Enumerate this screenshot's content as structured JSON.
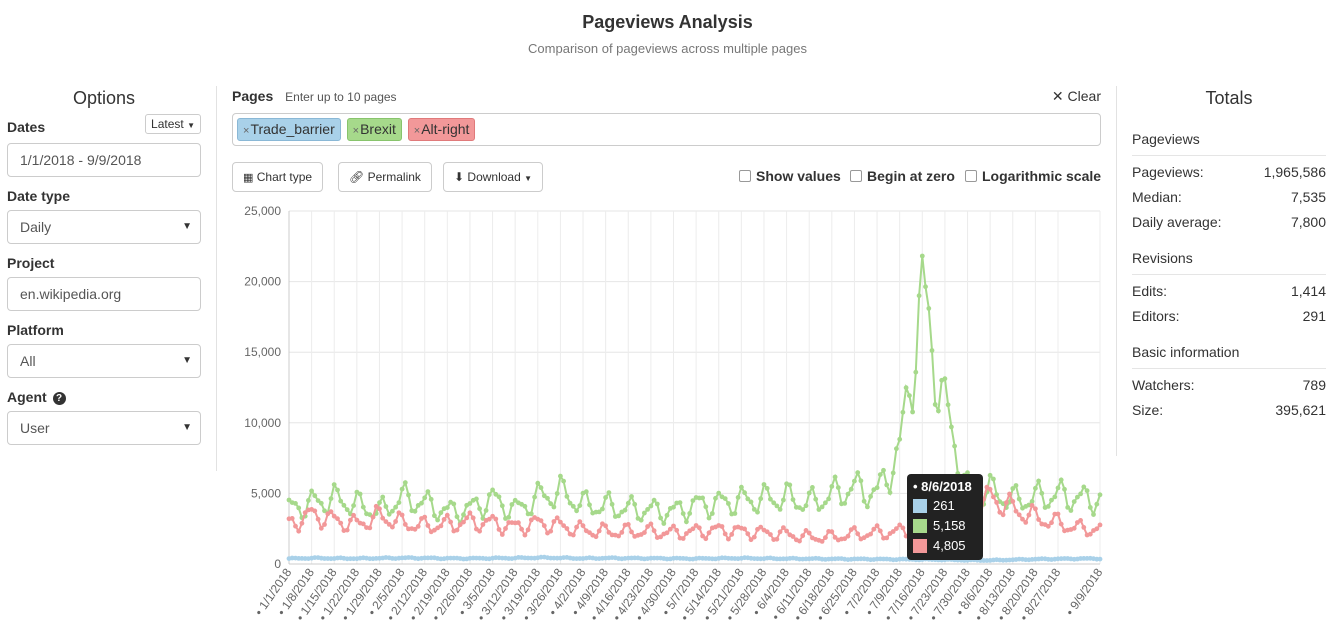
{
  "header": {
    "title": "Pageviews Analysis",
    "subtitle": "Comparison of pageviews across multiple pages"
  },
  "options": {
    "title": "Options",
    "dates_label": "Dates",
    "latest_label": "Latest",
    "dates_value": "1/1/2018 - 9/9/2018",
    "date_type_label": "Date type",
    "date_type_value": "Daily",
    "project_label": "Project",
    "project_value": "en.wikipedia.org",
    "platform_label": "Platform",
    "platform_value": "All",
    "agent_label": "Agent",
    "agent_value": "User"
  },
  "pages": {
    "label": "Pages",
    "hint": "Enter up to 10 pages",
    "clear_label": "Clear",
    "tags": [
      {
        "name": "Trade_barrier",
        "color": "#a9d1e9"
      },
      {
        "name": "Brexit",
        "color": "#a6d98b"
      },
      {
        "name": "Alt-right",
        "color": "#f29899"
      }
    ]
  },
  "toolbar": {
    "chart_type": "Chart type",
    "permalink": "Permalink",
    "download": "Download",
    "show_values": "Show values",
    "begin_at_zero": "Begin at zero",
    "log_scale": "Logarithmic scale"
  },
  "totals": {
    "title": "Totals",
    "pageviews_section": "Pageviews",
    "pageviews_label": "Pageviews:",
    "pageviews_value": "1,965,586",
    "median_label": "Median:",
    "median_value": "7,535",
    "daily_label": "Daily average:",
    "daily_value": "7,800",
    "revisions_section": "Revisions",
    "edits_label": "Edits:",
    "edits_value": "1,414",
    "editors_label": "Editors:",
    "editors_value": "291",
    "basic_section": "Basic information",
    "watchers_label": "Watchers:",
    "watchers_value": "789",
    "size_label": "Size:",
    "size_value": "395,621"
  },
  "tooltip": {
    "date": "8/6/2018",
    "rows": [
      {
        "value": "261",
        "color": "#a9d1e9"
      },
      {
        "value": "5,158",
        "color": "#a6d98b"
      },
      {
        "value": "4,805",
        "color": "#f29899"
      }
    ]
  },
  "chart_data": {
    "type": "line",
    "title": "",
    "xlabel": "",
    "ylabel": "",
    "ylim": [
      0,
      25000
    ],
    "y_ticks": [
      "0",
      "5,000",
      "10,000",
      "15,000",
      "20,000",
      "25,000"
    ],
    "x_ticks": [
      "1/1/2018",
      "1/8/2018",
      "1/15/2018",
      "1/22/2018",
      "1/29/2018",
      "2/5/2018",
      "2/12/2018",
      "2/19/2018",
      "2/26/2018",
      "3/5/2018",
      "3/12/2018",
      "3/19/2018",
      "3/26/2018",
      "4/2/2018",
      "4/9/2018",
      "4/16/2018",
      "4/23/2018",
      "4/30/2018",
      "5/7/2018",
      "5/14/2018",
      "5/21/2018",
      "5/28/2018",
      "6/4/2018",
      "6/11/2018",
      "6/18/2018",
      "6/25/2018",
      "7/2/2018",
      "7/9/2018",
      "7/16/2018",
      "7/23/2018",
      "7/30/2018",
      "8/6/2018",
      "8/13/2018",
      "8/20/2018",
      "8/27/2018",
      "9/9/2018"
    ],
    "x_start": "2018-01-01",
    "x_end": "2018-09-09",
    "grid": true,
    "series": [
      {
        "name": "Trade_barrier",
        "color": "#a9d1e9",
        "weekly": [
          380,
          420,
          400,
          390,
          410,
          430,
          420,
          400,
          390,
          410,
          420,
          450,
          430,
          400,
          420,
          410,
          400,
          390,
          380,
          400,
          410,
          390,
          380,
          370,
          360,
          350,
          340,
          330,
          320,
          300,
          270,
          261,
          300,
          340,
          360,
          380
        ]
      },
      {
        "name": "Brexit",
        "color": "#a6d98b",
        "weekly": [
          3900,
          4300,
          4600,
          4200,
          3700,
          4700,
          4300,
          3700,
          3900,
          4600,
          3800,
          4700,
          5100,
          4200,
          4100,
          3900,
          3800,
          3700,
          4200,
          4300,
          4500,
          4600,
          4700,
          4300,
          4900,
          5400,
          5000,
          8000,
          19000,
          11000,
          5300,
          5158,
          4500,
          4700,
          4900,
          4600
        ]
      },
      {
        "name": "Alt-right",
        "color": "#f29899",
        "weekly": [
          2800,
          3500,
          3100,
          2800,
          3400,
          2900,
          2700,
          2800,
          3000,
          2900,
          2600,
          2900,
          2700,
          2400,
          2300,
          2300,
          2300,
          2200,
          2300,
          2400,
          2300,
          2200,
          2100,
          1900,
          1900,
          2100,
          2200,
          2300,
          2500,
          2600,
          2800,
          4805,
          3900,
          3300,
          2900,
          2500
        ]
      }
    ]
  }
}
